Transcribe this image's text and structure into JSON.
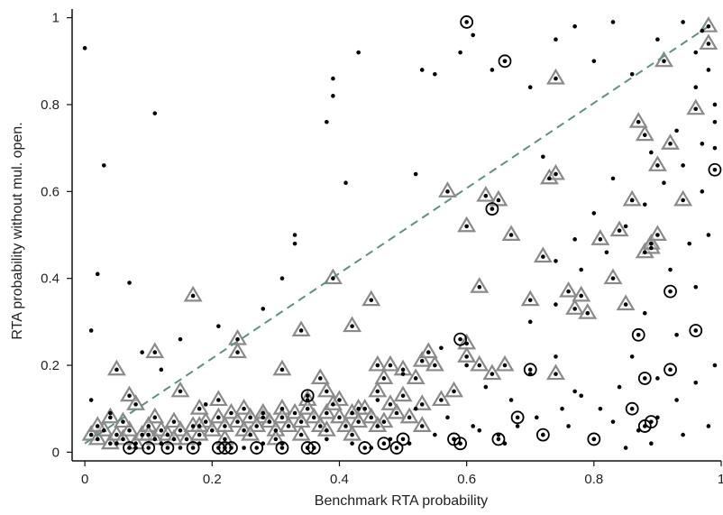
{
  "chart_data": {
    "type": "scatter",
    "title": "",
    "xlabel": "Benchmark RTA probability",
    "ylabel": "RTA probability without mul. open.",
    "xlim": [
      -0.02,
      1.0
    ],
    "ylim": [
      -0.02,
      1.02
    ],
    "x_ticks": [
      0,
      0.2,
      0.4,
      0.6,
      0.8,
      1
    ],
    "x_tick_labels": [
      "0",
      "0.2",
      "0.4",
      "0.6",
      "0.8",
      "1"
    ],
    "y_ticks": [
      0,
      0.2,
      0.4,
      0.6,
      0.8,
      1
    ],
    "y_tick_labels": [
      "0",
      "0.2",
      "0.4",
      "0.6",
      "0.8",
      "1"
    ],
    "grid": false,
    "legend": "none",
    "colors": {
      "dots": "#000000",
      "triangles": "#8a8a8a",
      "circles": "#000000",
      "reference_line": "#5f8f86"
    },
    "reference_line": {
      "style": "dashed",
      "points": [
        [
          0.0,
          0.02
        ],
        [
          0.98,
          0.98
        ]
      ]
    },
    "series": [
      {
        "marker": "dot",
        "points": [
          [
            0.0,
            0.93
          ],
          [
            0.03,
            0.66
          ],
          [
            0.11,
            0.78
          ],
          [
            0.02,
            0.41
          ],
          [
            0.07,
            0.39
          ],
          [
            0.01,
            0.28
          ],
          [
            0.09,
            0.23
          ],
          [
            0.33,
            0.5
          ],
          [
            0.33,
            0.48
          ],
          [
            0.38,
            0.76
          ],
          [
            0.39,
            0.82
          ],
          [
            0.39,
            0.86
          ],
          [
            0.43,
            0.92
          ],
          [
            0.41,
            0.62
          ],
          [
            0.53,
            0.88
          ],
          [
            0.55,
            0.87
          ],
          [
            0.52,
            0.64
          ],
          [
            0.61,
            0.96
          ],
          [
            0.59,
            0.92
          ],
          [
            0.64,
            0.88
          ],
          [
            0.66,
            0.9
          ],
          [
            0.7,
            0.84
          ],
          [
            0.72,
            0.68
          ],
          [
            0.74,
            0.95
          ],
          [
            0.77,
            0.98
          ],
          [
            0.8,
            0.9
          ],
          [
            0.83,
            0.99
          ],
          [
            0.86,
            0.87
          ],
          [
            0.9,
            0.95
          ],
          [
            0.94,
            0.99
          ],
          [
            0.96,
            0.92
          ],
          [
            0.97,
            0.97
          ],
          [
            0.98,
            0.88
          ],
          [
            0.99,
            0.8
          ],
          [
            0.99,
            0.7
          ],
          [
            0.97,
            0.6
          ],
          [
            0.95,
            0.48
          ],
          [
            0.98,
            0.5
          ],
          [
            0.92,
            0.42
          ],
          [
            0.96,
            0.38
          ],
          [
            0.88,
            0.32
          ],
          [
            0.93,
            0.27
          ],
          [
            0.86,
            0.22
          ],
          [
            0.9,
            0.17
          ],
          [
            0.84,
            0.15
          ],
          [
            0.78,
            0.13
          ],
          [
            0.75,
            0.1
          ],
          [
            0.71,
            0.08
          ],
          [
            0.68,
            0.06
          ],
          [
            0.65,
            0.04
          ],
          [
            0.62,
            0.05
          ],
          [
            0.58,
            0.03
          ],
          [
            0.55,
            0.04
          ],
          [
            0.51,
            0.02
          ],
          [
            0.48,
            0.03
          ],
          [
            0.45,
            0.01
          ],
          [
            0.42,
            0.02
          ],
          [
            0.38,
            0.03
          ],
          [
            0.35,
            0.01
          ],
          [
            0.31,
            0.02
          ],
          [
            0.28,
            0.02
          ],
          [
            0.25,
            0.01
          ],
          [
            0.22,
            0.01
          ],
          [
            0.18,
            0.02
          ],
          [
            0.15,
            0.01
          ],
          [
            0.12,
            0.02
          ],
          [
            0.08,
            0.01
          ],
          [
            0.05,
            0.02
          ],
          [
            0.6,
            0.2
          ],
          [
            0.63,
            0.15
          ],
          [
            0.67,
            0.12
          ],
          [
            0.7,
            0.18
          ],
          [
            0.74,
            0.22
          ],
          [
            0.77,
            0.14
          ],
          [
            0.81,
            0.1
          ],
          [
            0.83,
            0.07
          ],
          [
            0.87,
            0.05
          ],
          [
            0.9,
            0.08
          ],
          [
            0.93,
            0.12
          ],
          [
            0.96,
            0.16
          ],
          [
            0.99,
            0.2
          ],
          [
            0.56,
            0.24
          ],
          [
            0.5,
            0.18
          ],
          [
            0.46,
            0.12
          ],
          [
            0.42,
            0.09
          ],
          [
            0.52,
            0.1
          ],
          [
            0.57,
            0.08
          ],
          [
            0.61,
            0.06
          ],
          [
            0.66,
            0.02
          ],
          [
            0.72,
            0.04
          ],
          [
            0.76,
            0.06
          ],
          [
            0.8,
            0.03
          ],
          [
            0.85,
            0.01
          ],
          [
            0.89,
            0.02
          ],
          [
            0.94,
            0.04
          ],
          [
            0.98,
            0.06
          ],
          [
            0.7,
            0.3
          ],
          [
            0.74,
            0.34
          ],
          [
            0.78,
            0.42
          ],
          [
            0.82,
            0.46
          ],
          [
            0.85,
            0.52
          ],
          [
            0.88,
            0.57
          ],
          [
            0.91,
            0.62
          ],
          [
            0.94,
            0.66
          ],
          [
            0.97,
            0.71
          ],
          [
            0.99,
            0.76
          ],
          [
            0.96,
            0.84
          ],
          [
            0.93,
            0.74
          ],
          [
            0.89,
            0.69
          ],
          [
            0.86,
            0.58
          ],
          [
            0.83,
            0.63
          ],
          [
            0.8,
            0.55
          ],
          [
            0.77,
            0.49
          ],
          [
            0.74,
            0.44
          ],
          [
            0.31,
            0.4
          ],
          [
            0.28,
            0.33
          ],
          [
            0.21,
            0.29
          ],
          [
            0.15,
            0.26
          ],
          [
            0.12,
            0.19
          ],
          [
            0.19,
            0.11
          ],
          [
            0.04,
            0.09
          ],
          [
            0.01,
            0.12
          ]
        ]
      },
      {
        "marker": "triangle",
        "points": [
          [
            0.05,
            0.19
          ],
          [
            0.11,
            0.23
          ],
          [
            0.17,
            0.36
          ],
          [
            0.24,
            0.26
          ],
          [
            0.24,
            0.23
          ],
          [
            0.31,
            0.19
          ],
          [
            0.34,
            0.28
          ],
          [
            0.37,
            0.17
          ],
          [
            0.39,
            0.4
          ],
          [
            0.42,
            0.29
          ],
          [
            0.45,
            0.35
          ],
          [
            0.46,
            0.2
          ],
          [
            0.48,
            0.2
          ],
          [
            0.47,
            0.17
          ],
          [
            0.5,
            0.19
          ],
          [
            0.52,
            0.17
          ],
          [
            0.53,
            0.21
          ],
          [
            0.55,
            0.2
          ],
          [
            0.54,
            0.23
          ],
          [
            0.57,
            0.6
          ],
          [
            0.6,
            0.52
          ],
          [
            0.63,
            0.59
          ],
          [
            0.65,
            0.58
          ],
          [
            0.67,
            0.5
          ],
          [
            0.62,
            0.38
          ],
          [
            0.6,
            0.25
          ],
          [
            0.6,
            0.22
          ],
          [
            0.62,
            0.2
          ],
          [
            0.64,
            0.18
          ],
          [
            0.66,
            0.2
          ],
          [
            0.7,
            0.35
          ],
          [
            0.72,
            0.45
          ],
          [
            0.73,
            0.63
          ],
          [
            0.74,
            0.64
          ],
          [
            0.76,
            0.37
          ],
          [
            0.77,
            0.33
          ],
          [
            0.78,
            0.36
          ],
          [
            0.79,
            0.32
          ],
          [
            0.81,
            0.49
          ],
          [
            0.74,
            0.86
          ],
          [
            0.83,
            0.4
          ],
          [
            0.84,
            0.51
          ],
          [
            0.85,
            0.34
          ],
          [
            0.86,
            0.58
          ],
          [
            0.87,
            0.76
          ],
          [
            0.88,
            0.46
          ],
          [
            0.89,
            0.47
          ],
          [
            0.89,
            0.48
          ],
          [
            0.9,
            0.5
          ],
          [
            0.9,
            0.66
          ],
          [
            0.91,
            0.9
          ],
          [
            0.92,
            0.71
          ],
          [
            0.94,
            0.58
          ],
          [
            0.96,
            0.79
          ],
          [
            0.98,
            0.98
          ],
          [
            0.98,
            0.94
          ],
          [
            0.88,
            0.73
          ],
          [
            0.74,
            0.18
          ],
          [
            0.04,
            0.08
          ],
          [
            0.07,
            0.13
          ],
          [
            0.08,
            0.11
          ],
          [
            0.11,
            0.08
          ],
          [
            0.15,
            0.14
          ],
          [
            0.18,
            0.1
          ],
          [
            0.21,
            0.12
          ],
          [
            0.25,
            0.1
          ],
          [
            0.28,
            0.08
          ],
          [
            0.31,
            0.1
          ],
          [
            0.35,
            0.12
          ],
          [
            0.38,
            0.14
          ],
          [
            0.4,
            0.12
          ],
          [
            0.43,
            0.1
          ],
          [
            0.46,
            0.14
          ],
          [
            0.48,
            0.11
          ],
          [
            0.5,
            0.13
          ],
          [
            0.53,
            0.11
          ],
          [
            0.56,
            0.12
          ],
          [
            0.58,
            0.14
          ],
          [
            0.01,
            0.04
          ],
          [
            0.02,
            0.03
          ],
          [
            0.03,
            0.05
          ],
          [
            0.04,
            0.02
          ],
          [
            0.05,
            0.04
          ],
          [
            0.06,
            0.03
          ],
          [
            0.07,
            0.05
          ],
          [
            0.08,
            0.02
          ],
          [
            0.09,
            0.04
          ],
          [
            0.1,
            0.06
          ],
          [
            0.11,
            0.03
          ],
          [
            0.12,
            0.05
          ],
          [
            0.13,
            0.04
          ],
          [
            0.14,
            0.07
          ],
          [
            0.15,
            0.05
          ],
          [
            0.16,
            0.03
          ],
          [
            0.17,
            0.06
          ],
          [
            0.18,
            0.04
          ],
          [
            0.19,
            0.07
          ],
          [
            0.2,
            0.05
          ],
          [
            0.21,
            0.08
          ],
          [
            0.22,
            0.06
          ],
          [
            0.23,
            0.09
          ],
          [
            0.24,
            0.07
          ],
          [
            0.25,
            0.05
          ],
          [
            0.26,
            0.08
          ],
          [
            0.27,
            0.06
          ],
          [
            0.28,
            0.09
          ],
          [
            0.29,
            0.07
          ],
          [
            0.3,
            0.05
          ],
          [
            0.31,
            0.08
          ],
          [
            0.32,
            0.06
          ],
          [
            0.33,
            0.09
          ],
          [
            0.34,
            0.07
          ],
          [
            0.35,
            0.1
          ],
          [
            0.36,
            0.08
          ],
          [
            0.37,
            0.06
          ],
          [
            0.38,
            0.09
          ],
          [
            0.39,
            0.11
          ],
          [
            0.4,
            0.08
          ],
          [
            0.41,
            0.06
          ],
          [
            0.42,
            0.09
          ],
          [
            0.43,
            0.07
          ],
          [
            0.44,
            0.1
          ],
          [
            0.45,
            0.08
          ],
          [
            0.47,
            0.07
          ],
          [
            0.49,
            0.09
          ],
          [
            0.51,
            0.08
          ],
          [
            0.53,
            0.06
          ],
          [
            0.02,
            0.06
          ],
          [
            0.06,
            0.07
          ],
          [
            0.1,
            0.04
          ],
          [
            0.14,
            0.03
          ],
          [
            0.18,
            0.06
          ],
          [
            0.22,
            0.03
          ],
          [
            0.26,
            0.04
          ],
          [
            0.3,
            0.03
          ],
          [
            0.34,
            0.04
          ],
          [
            0.38,
            0.05
          ],
          [
            0.42,
            0.04
          ],
          [
            0.46,
            0.06
          ]
        ]
      },
      {
        "marker": "ring",
        "points": [
          [
            0.6,
            0.99
          ],
          [
            0.66,
            0.9
          ],
          [
            0.64,
            0.56
          ],
          [
            0.99,
            0.65
          ],
          [
            0.92,
            0.37
          ],
          [
            0.96,
            0.28
          ],
          [
            0.87,
            0.27
          ],
          [
            0.88,
            0.17
          ],
          [
            0.92,
            0.19
          ],
          [
            0.86,
            0.1
          ],
          [
            0.89,
            0.07
          ],
          [
            0.88,
            0.06
          ],
          [
            0.8,
            0.03
          ],
          [
            0.72,
            0.04
          ],
          [
            0.7,
            0.19
          ],
          [
            0.68,
            0.08
          ],
          [
            0.65,
            0.03
          ],
          [
            0.59,
            0.26
          ],
          [
            0.59,
            0.02
          ],
          [
            0.58,
            0.03
          ],
          [
            0.5,
            0.03
          ],
          [
            0.49,
            0.01
          ],
          [
            0.47,
            0.02
          ],
          [
            0.44,
            0.01
          ],
          [
            0.35,
            0.13
          ],
          [
            0.35,
            0.01
          ],
          [
            0.36,
            0.01
          ],
          [
            0.31,
            0.01
          ],
          [
            0.27,
            0.01
          ],
          [
            0.23,
            0.01
          ],
          [
            0.21,
            0.01
          ],
          [
            0.17,
            0.01
          ],
          [
            0.13,
            0.01
          ],
          [
            0.1,
            0.01
          ],
          [
            0.07,
            0.01
          ],
          [
            0.22,
            0.01
          ]
        ]
      }
    ]
  }
}
